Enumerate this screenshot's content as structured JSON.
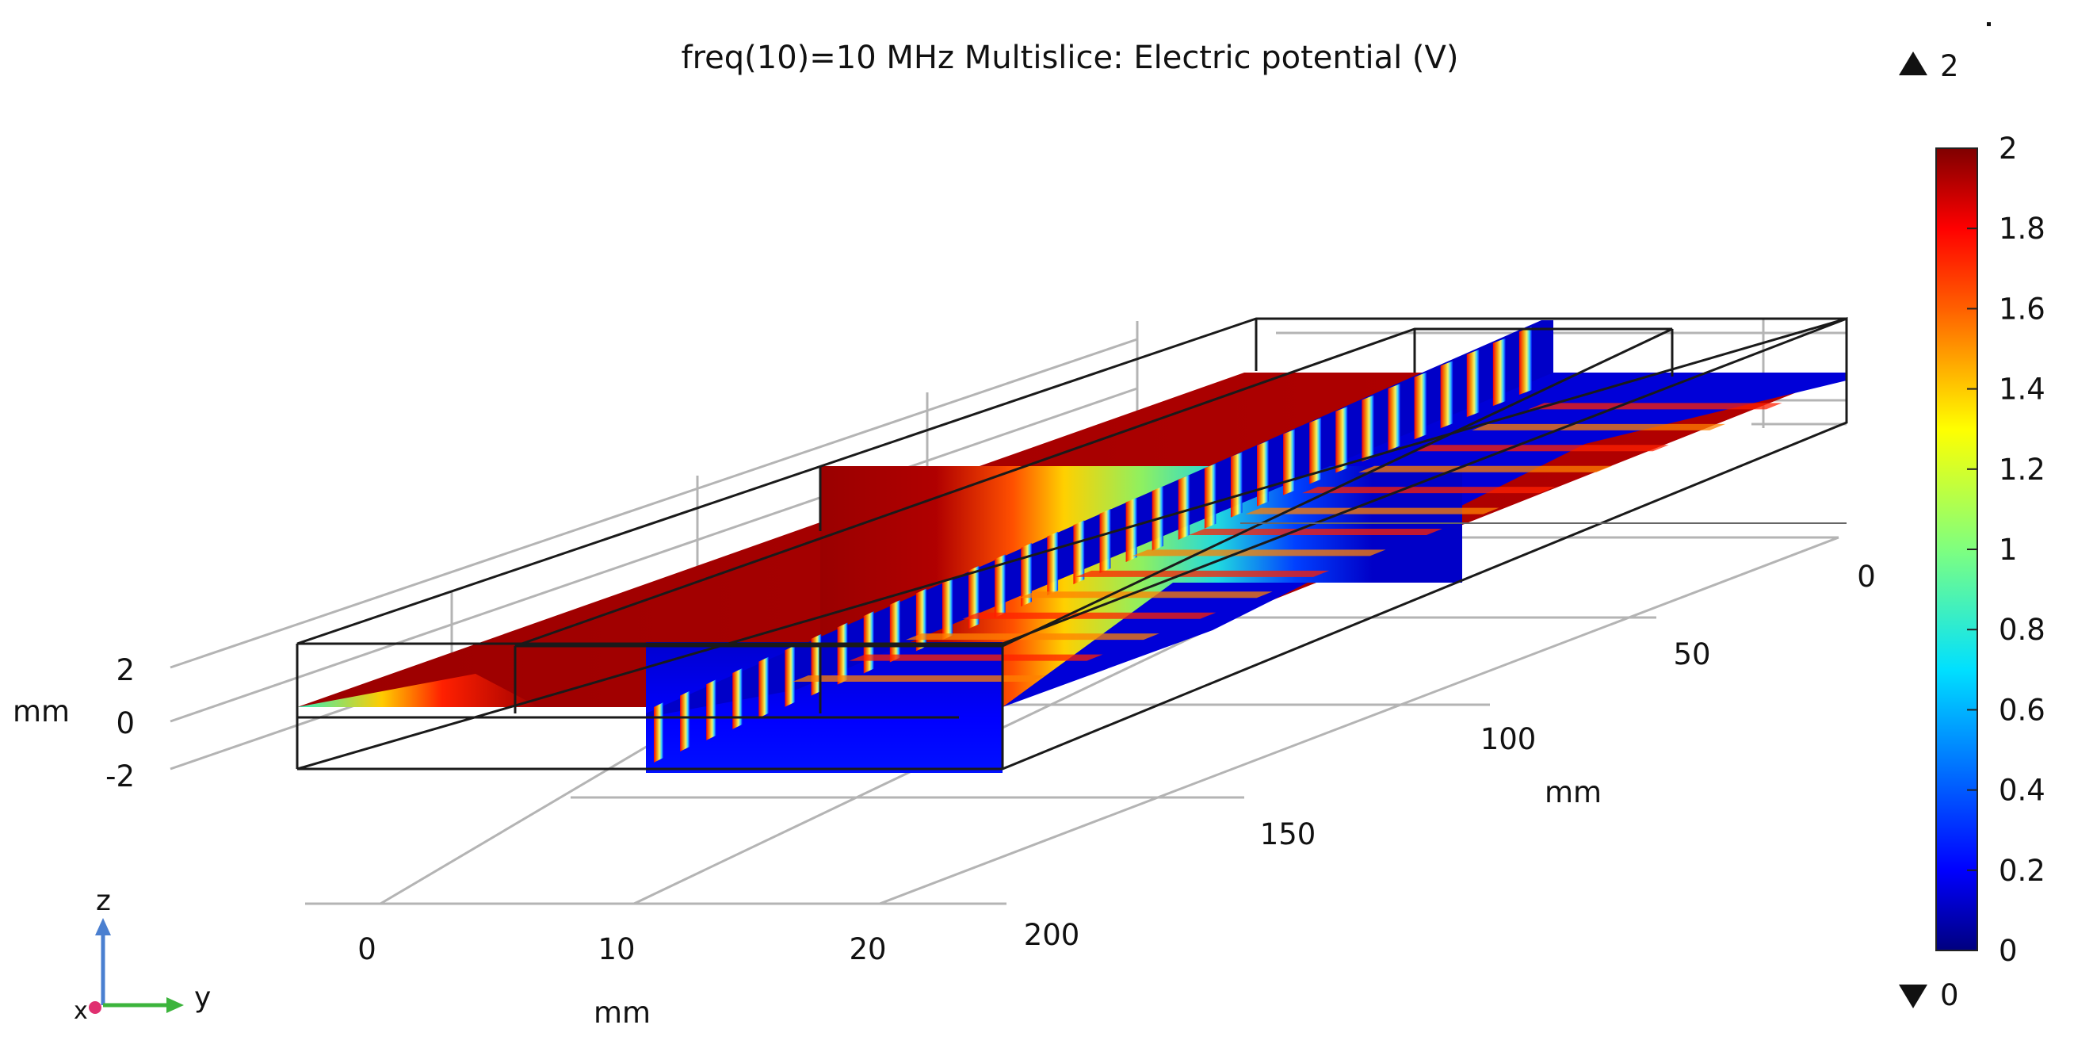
{
  "chart_data": {
    "type": "heatmap",
    "title": "freq(10)=10 MHz   Multislice: Electric potential (V)",
    "colormap": "rainbow",
    "axes": {
      "x": {
        "label": "mm",
        "ticks": [
          "0",
          "10",
          "20"
        ],
        "range": [
          0,
          20
        ]
      },
      "y": {
        "label": "mm",
        "ticks": [
          "0",
          "50",
          "100",
          "150",
          "200"
        ],
        "range": [
          0,
          200
        ]
      },
      "z": {
        "label": "mm",
        "ticks": [
          "2",
          "0",
          "-2"
        ],
        "range": [
          -2,
          2
        ]
      }
    },
    "colorbar": {
      "min": 0,
      "max": 2,
      "ticks": [
        "2",
        "1.8",
        "1.6",
        "1.4",
        "1.2",
        "1",
        "0.8",
        "0.6",
        "0.4",
        "0.2",
        "0"
      ],
      "max_marker": "2",
      "min_marker": "0"
    },
    "triad": {
      "z": "z",
      "y": "y",
      "x": "x"
    }
  }
}
